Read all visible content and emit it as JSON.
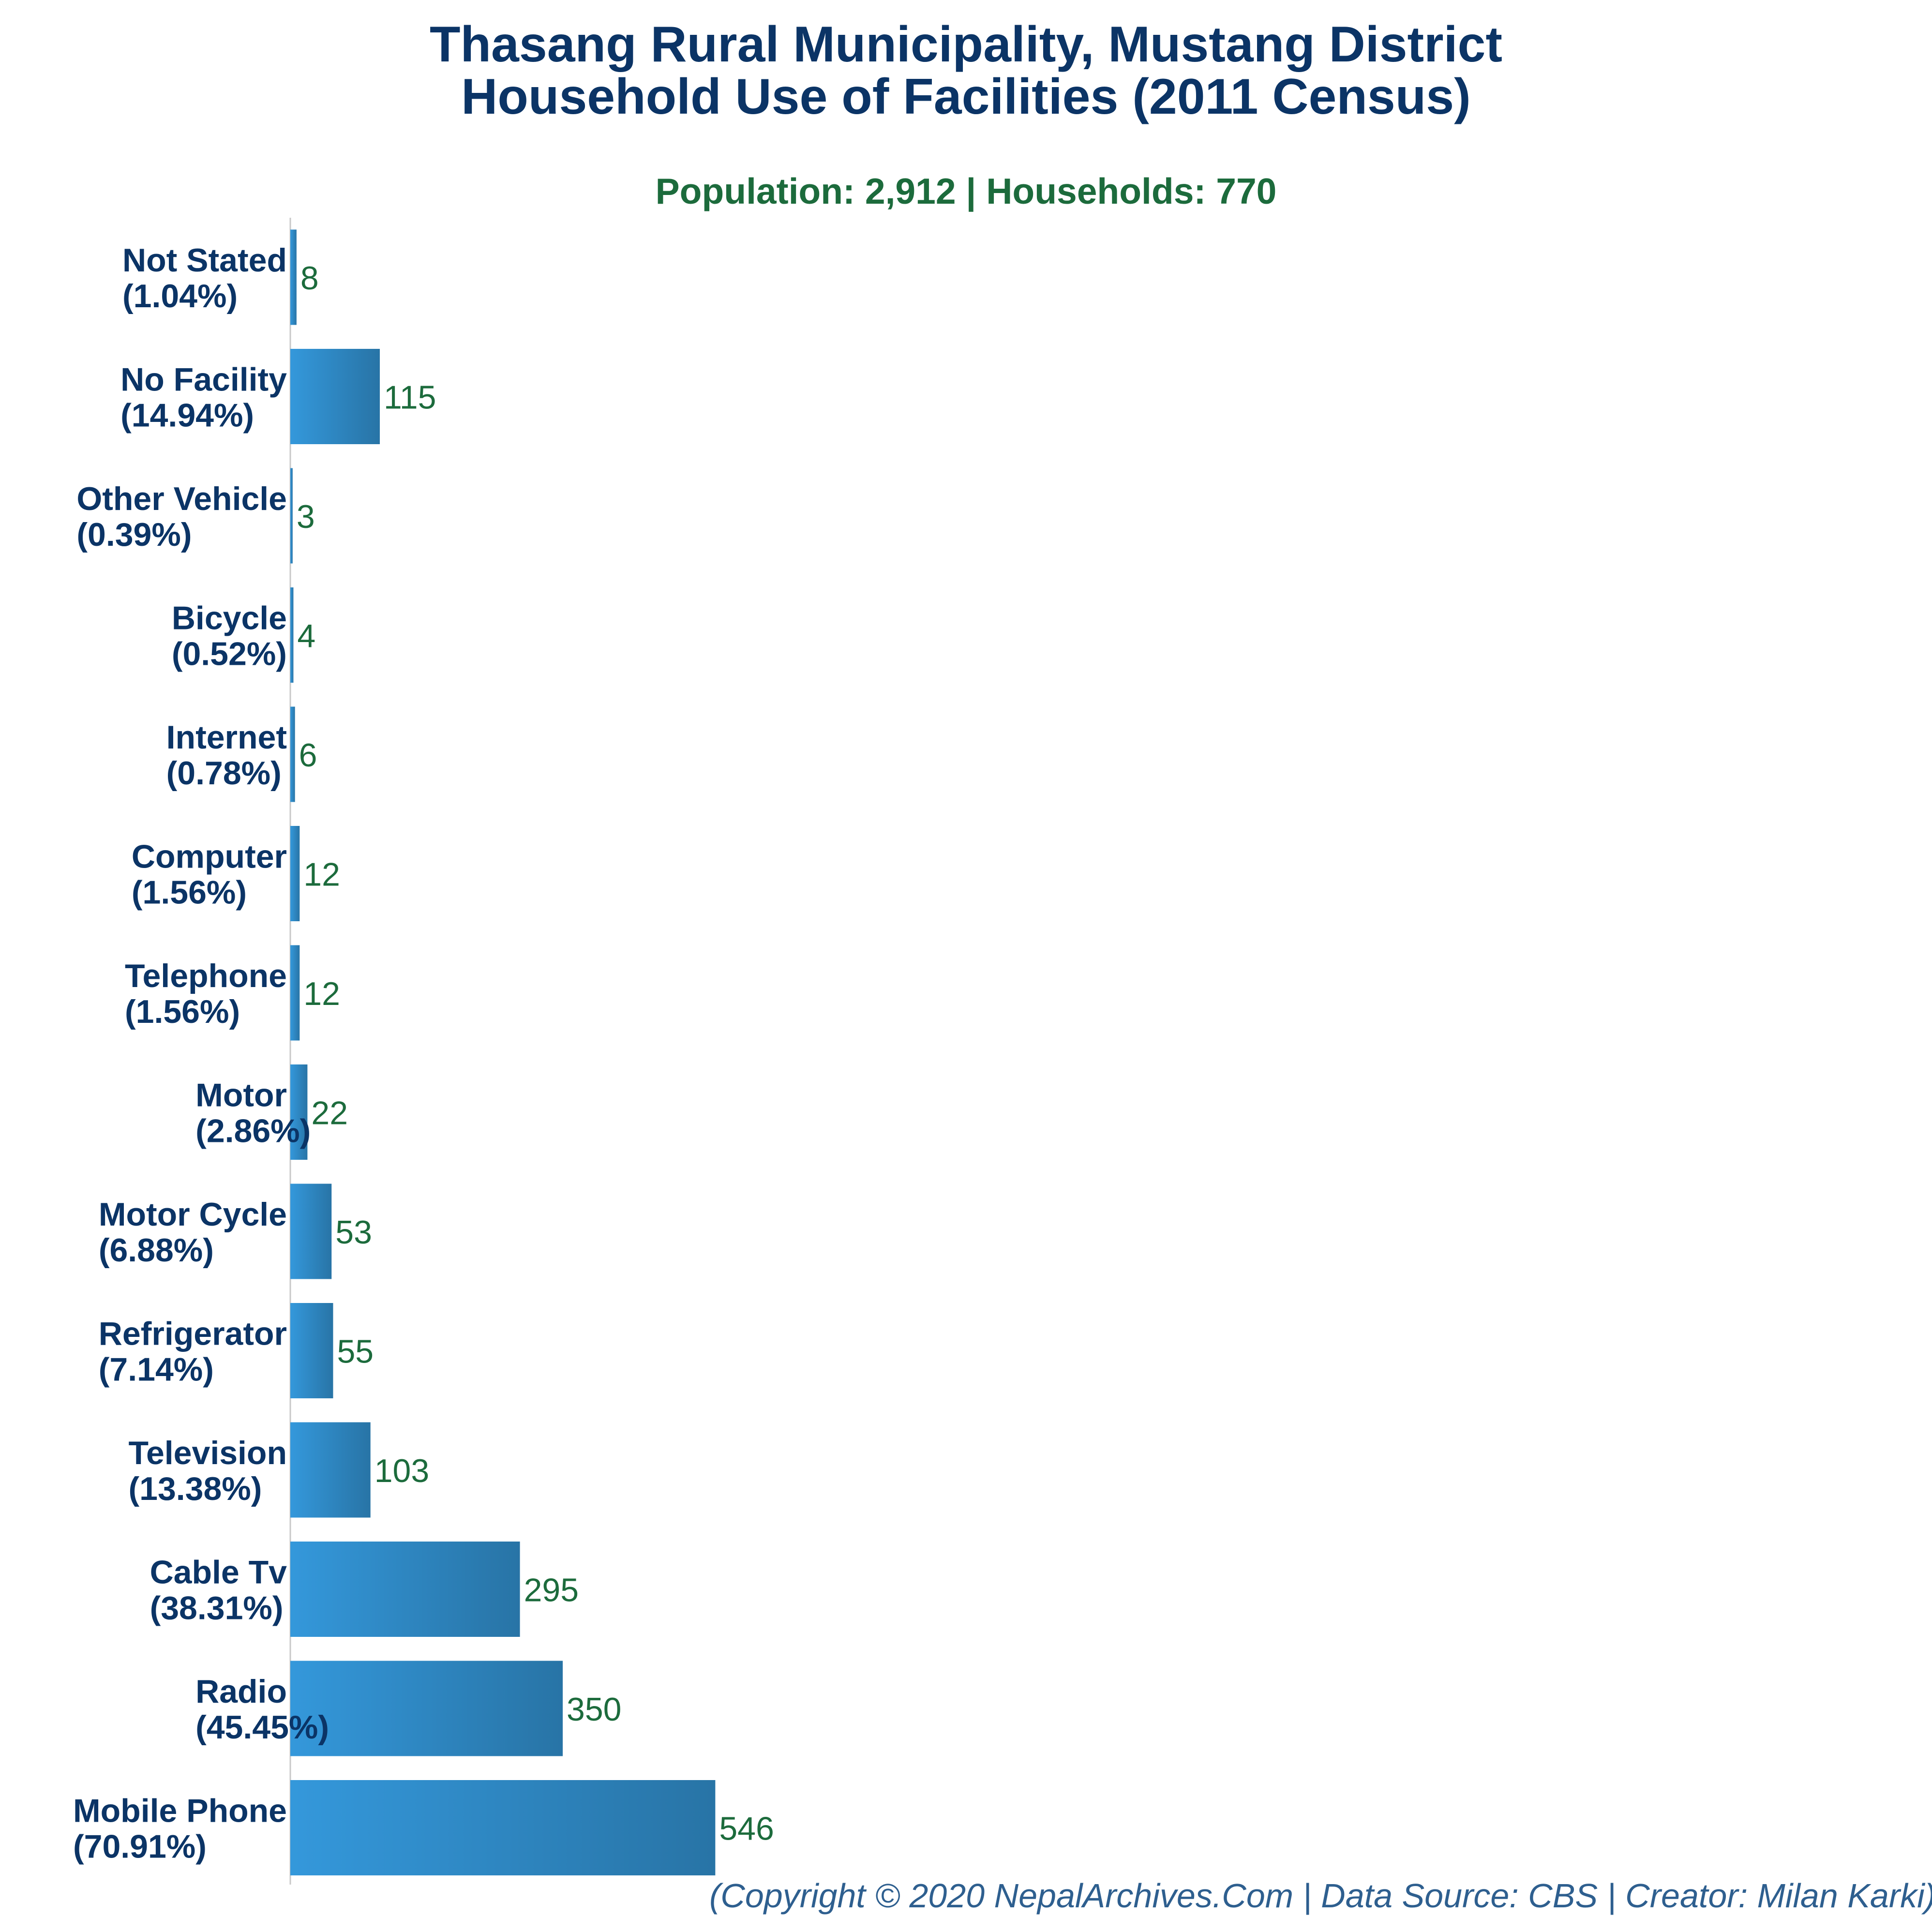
{
  "header": {
    "title_line1": "Thasang Rural Municipality, Mustang District",
    "title_line2": "Household Use of Facilities (2011 Census)",
    "subtitle": "Population: 2,912 | Households: 770"
  },
  "footer": {
    "credit": "(Copyright © 2020 NepalArchives.Com | Data Source: CBS | Creator: Milan Karki)"
  },
  "colors": {
    "bar_light": "#3498db",
    "bar_dark": "#2874a6",
    "value_label": "#1c6b3c",
    "category_label": "#0b3466",
    "axis": "#c8c8c8"
  },
  "chart_data": {
    "type": "bar",
    "orientation": "horizontal",
    "categories": [
      "Not Stated",
      "No Facility",
      "Other Vehicle",
      "Bicycle",
      "Internet",
      "Computer",
      "Telephone",
      "Motor",
      "Motor Cycle",
      "Refrigerator",
      "Television",
      "Cable Tv",
      "Radio",
      "Mobile Phone"
    ],
    "percent_labels": [
      "(1.04%)",
      "(14.94%)",
      "(0.39%)",
      "(0.52%)",
      "(0.78%)",
      "(1.56%)",
      "(1.56%)",
      "(2.86%)",
      "(6.88%)",
      "(7.14%)",
      "(13.38%)",
      "(38.31%)",
      "(45.45%)",
      "(70.91%)"
    ],
    "values": [
      8,
      115,
      3,
      4,
      6,
      12,
      12,
      22,
      53,
      55,
      103,
      295,
      350,
      546
    ],
    "title": "Thasang Rural Municipality, Mustang District Household Use of Facilities (2011 Census)",
    "grid": false
  }
}
